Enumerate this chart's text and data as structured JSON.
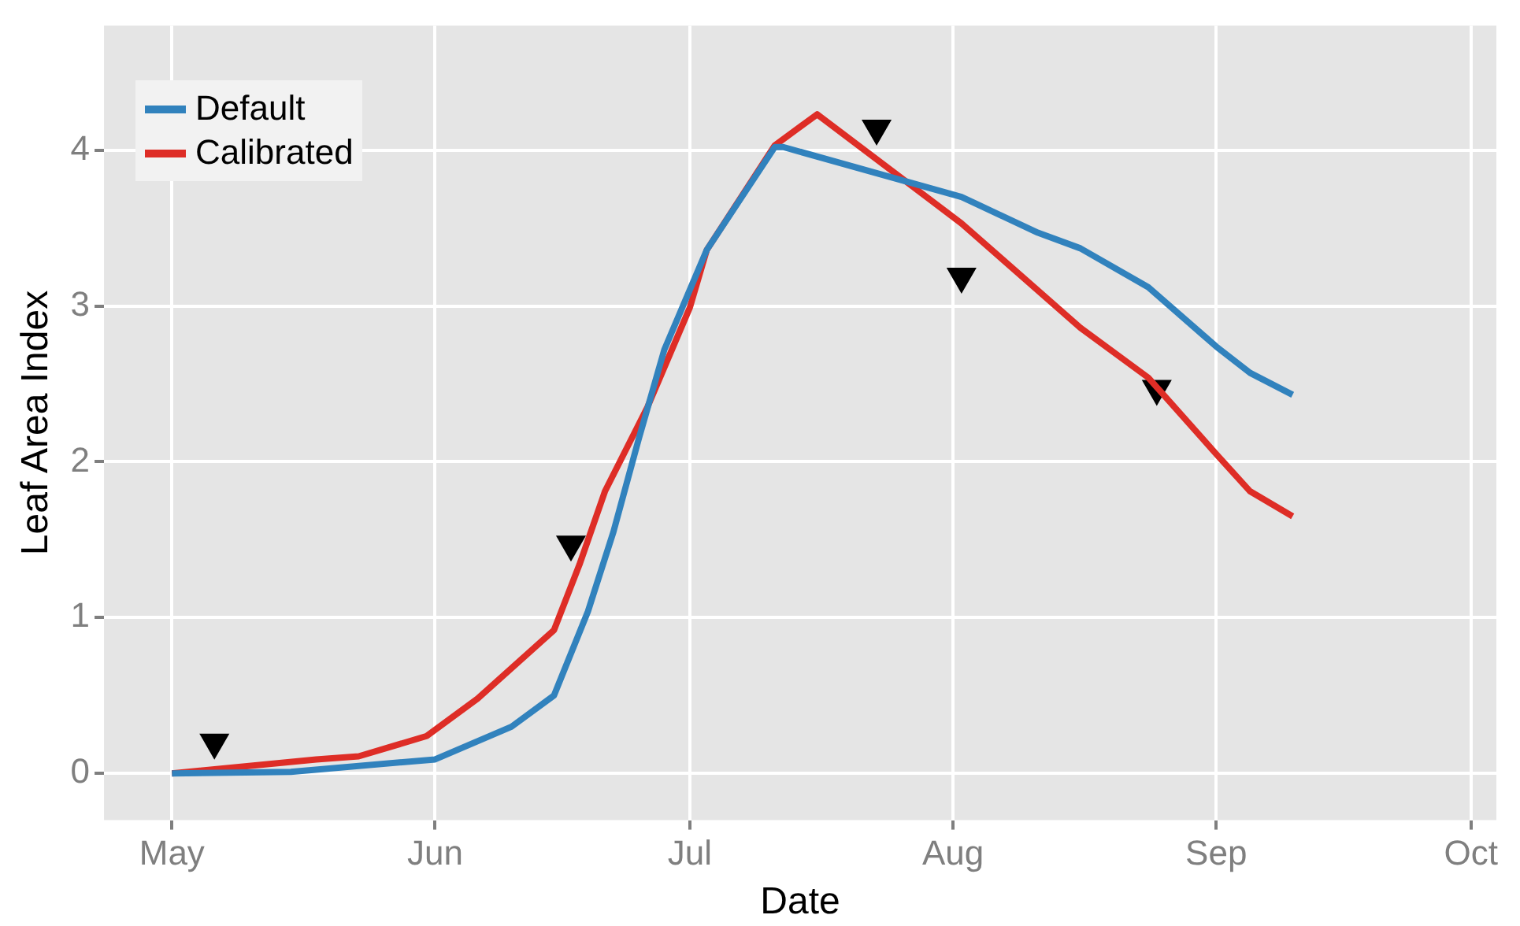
{
  "chart_data": {
    "type": "line",
    "xlabel": "Date",
    "ylabel": "Leaf Area Index",
    "xlim": [
      "--04-23",
      "--10-04"
    ],
    "ylim": [
      -0.3,
      4.8
    ],
    "xticks": [
      {
        "value": "--05-01",
        "label": "May"
      },
      {
        "value": "--06-01",
        "label": "Jun"
      },
      {
        "value": "--07-01",
        "label": "Jul"
      },
      {
        "value": "--08-01",
        "label": "Aug"
      },
      {
        "value": "--09-01",
        "label": "Sep"
      },
      {
        "value": "--10-01",
        "label": "Oct"
      }
    ],
    "yticks": [
      0,
      1,
      2,
      3,
      4
    ],
    "grid": true,
    "legend": "top left",
    "line_style": "solid",
    "series": [
      {
        "name": "Default",
        "color": "#3182bd",
        "x": [
          "--05-01",
          "--05-15",
          "--06-01",
          "--06-10",
          "--06-15",
          "--06-19",
          "--06-22",
          "--06-25",
          "--06-28",
          "--07-03",
          "--07-11",
          "--07-12",
          "--08-02",
          "--08-11",
          "--08-16",
          "--08-24",
          "--09-01",
          "--09-05",
          "--09-10"
        ],
        "values": [
          0,
          0.01,
          0.09,
          0.3,
          0.5,
          1.04,
          1.55,
          2.15,
          2.72,
          3.36,
          4.02,
          4.02,
          3.7,
          3.47,
          3.37,
          3.12,
          2.74,
          2.57,
          2.43
        ]
      },
      {
        "name": "Calibrated",
        "color": "#de2d26",
        "x": [
          "--05-01",
          "--05-18",
          "--05-23",
          "--05-31",
          "--06-06",
          "--06-15",
          "--06-18",
          "--06-21",
          "--06-26",
          "--07-01",
          "--07-03",
          "--07-11",
          "--07-16",
          "--08-02",
          "--08-16",
          "--08-24",
          "--09-01",
          "--09-05",
          "--09-10"
        ],
        "values": [
          0,
          0.09,
          0.11,
          0.24,
          0.48,
          0.92,
          1.34,
          1.81,
          2.35,
          2.99,
          3.36,
          4.03,
          4.23,
          3.53,
          2.86,
          2.54,
          2.05,
          1.81,
          1.65
        ]
      },
      {
        "type": "scatter",
        "color": "#000000",
        "marker": "triangle",
        "x": [
          "--05-06",
          "--06-17",
          "--07-23",
          "--08-02",
          "--08-25"
        ],
        "values": [
          0.2,
          1.47,
          4.14,
          3.19,
          2.47
        ]
      }
    ]
  }
}
